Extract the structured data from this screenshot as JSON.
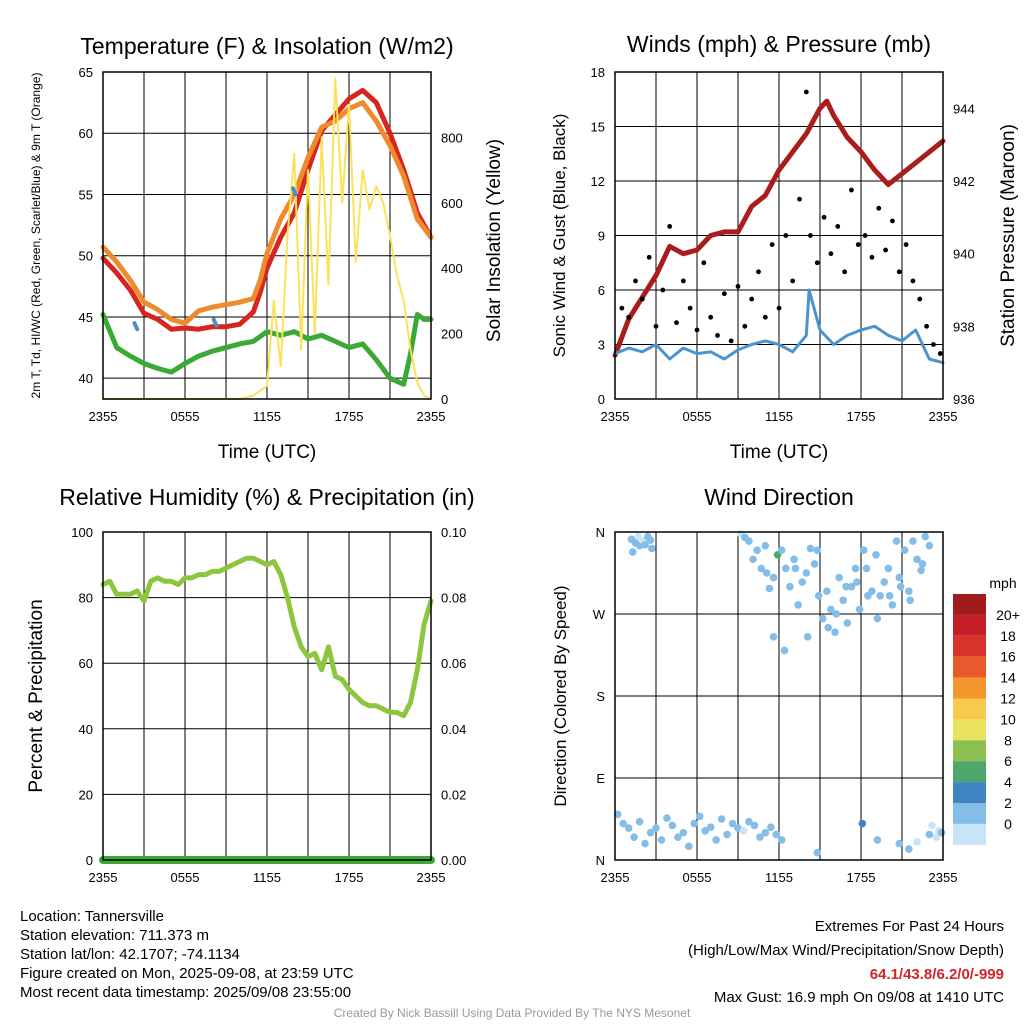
{
  "colors": {
    "t2m": "#d7261e",
    "t9m": "#f08a2e",
    "td": "#3aaa35",
    "hi_wc": "#4a90c8",
    "solar": "#fbe25a",
    "gust": "#000000",
    "wind": "#4a95d0",
    "pressure": "#aa1d1d",
    "rh": "#8cc63f",
    "precip": "#3aaa35"
  },
  "chart_data": [
    {
      "type": "line",
      "title": "Temperature (F) & Insolation (W/m2)",
      "xlabel": "Time (UTC)",
      "ylabel": "2m T, Td, HI/WC (Red, Green, Scarlet/Blue) & 9m T (Orange)",
      "ylabel_right": "Solar Insolation (Yellow)",
      "x_ticks": [
        "2355",
        "0555",
        "1155",
        "1755",
        "2355"
      ],
      "xlim": [
        0,
        24
      ],
      "ylim": [
        38.3,
        65
      ],
      "yticks": [
        40,
        45,
        50,
        55,
        60,
        65
      ],
      "ylim_right": [
        0,
        1000
      ],
      "yticks_right": [
        0,
        200,
        400,
        600,
        800
      ],
      "grid": true,
      "series": [
        {
          "key": "t2m",
          "x": [
            0,
            1,
            2,
            3,
            4,
            5,
            6,
            7,
            8,
            9,
            10,
            11,
            11.5,
            12,
            13,
            14,
            15,
            16,
            17,
            18,
            19,
            20,
            21,
            22,
            23,
            24
          ],
          "y": [
            49.8,
            48.6,
            47.2,
            45.3,
            44.8,
            44.0,
            44.1,
            44.0,
            44.2,
            44.2,
            44.4,
            45.4,
            47.0,
            49.0,
            51.5,
            53.5,
            57.0,
            60.2,
            61.5,
            62.8,
            63.5,
            62.5,
            60.0,
            57.0,
            53.5,
            51.5
          ]
        },
        {
          "key": "t9m",
          "x": [
            0,
            1,
            2,
            3,
            4,
            5,
            6,
            7,
            8,
            9,
            10,
            11,
            11.5,
            12,
            13,
            14,
            15,
            16,
            17,
            18,
            19,
            20,
            21,
            22,
            23,
            24
          ],
          "y": [
            50.7,
            49.5,
            48.0,
            46.2,
            45.6,
            44.8,
            44.5,
            45.5,
            45.8,
            46.0,
            46.2,
            46.5,
            48.0,
            50.2,
            53.0,
            55.0,
            58.0,
            60.5,
            61.0,
            62.0,
            62.5,
            61.0,
            59.0,
            56.5,
            53.0,
            51.5
          ]
        },
        {
          "key": "td",
          "x": [
            0,
            1,
            2,
            3,
            4,
            5,
            6,
            7,
            8,
            9,
            10,
            11,
            12,
            13,
            14,
            15,
            16,
            17,
            18,
            19,
            20,
            21,
            22,
            22.5,
            23,
            23.5,
            24
          ],
          "y": [
            45.2,
            42.5,
            41.8,
            41.2,
            40.8,
            40.5,
            41.2,
            41.8,
            42.2,
            42.5,
            42.8,
            43.0,
            43.8,
            43.5,
            43.8,
            43.2,
            43.5,
            43.0,
            42.5,
            42.8,
            41.5,
            40.0,
            39.5,
            42.0,
            45.2,
            44.8,
            44.8
          ]
        },
        {
          "key": "solar",
          "axis": "right",
          "x": [
            0,
            10,
            11,
            12,
            12.5,
            13,
            13.5,
            14,
            14.5,
            15,
            15.5,
            16,
            16.5,
            17,
            17.5,
            18,
            18.5,
            19,
            19.5,
            20,
            20.5,
            21,
            21.5,
            22,
            22.5,
            23,
            23.5,
            24
          ],
          "y": [
            0,
            0,
            10,
            40,
            300,
            100,
            500,
            750,
            150,
            700,
            200,
            800,
            350,
            980,
            600,
            900,
            420,
            700,
            580,
            650,
            600,
            500,
            380,
            300,
            150,
            50,
            10,
            0
          ]
        },
        {
          "key": "hi_wc",
          "x": [
            2.3,
            2.5,
            8.1,
            8.3,
            13.9,
            14.1
          ],
          "y": [
            44.5,
            44.0,
            44.8,
            44.3,
            55.5,
            55.0
          ]
        }
      ]
    },
    {
      "type": "line",
      "title": "Winds (mph) & Pressure (mb)",
      "xlabel": "Time (UTC)",
      "ylabel": "Sonic Wind & Gust (Blue, Black)",
      "ylabel_right": "Station Pressure (Maroon)",
      "x_ticks": [
        "2355",
        "0555",
        "1155",
        "1755",
        "2355"
      ],
      "xlim": [
        0,
        24
      ],
      "ylim": [
        0,
        18
      ],
      "yticks": [
        0,
        3,
        6,
        9,
        12,
        15,
        18
      ],
      "ylim_right": [
        936,
        945
      ],
      "yticks_right": [
        936,
        938,
        940,
        942,
        944
      ],
      "grid": true,
      "series": [
        {
          "key": "pressure",
          "axis": "right",
          "x": [
            0,
            1,
            2,
            3,
            4,
            5,
            6,
            7,
            8,
            9,
            10,
            11,
            12,
            13,
            14,
            15,
            15.5,
            16,
            17,
            18,
            19,
            20,
            21,
            22,
            23,
            24
          ],
          "y": [
            937.2,
            938.2,
            938.8,
            939.4,
            940.2,
            940.0,
            940.1,
            940.5,
            940.6,
            940.6,
            941.3,
            941.6,
            942.3,
            942.8,
            943.3,
            944.0,
            944.2,
            943.8,
            943.2,
            942.8,
            942.3,
            941.9,
            942.2,
            942.5,
            942.8,
            943.1
          ]
        },
        {
          "key": "wind",
          "x": [
            0,
            1,
            2,
            3,
            4,
            5,
            6,
            7,
            8,
            9,
            10,
            11,
            12,
            13,
            14,
            14.2,
            15,
            16,
            17,
            18,
            19,
            20,
            21,
            22,
            23,
            24
          ],
          "y": [
            2.5,
            2.8,
            2.6,
            3.0,
            2.2,
            2.8,
            2.5,
            2.6,
            2.2,
            2.7,
            3.0,
            3.2,
            3.0,
            2.6,
            3.5,
            6.0,
            3.8,
            3.0,
            3.5,
            3.8,
            4.0,
            3.5,
            3.2,
            3.8,
            2.2,
            2.0
          ]
        },
        {
          "key": "gust",
          "mode": "points",
          "x": [
            0.5,
            1,
            1.5,
            2,
            2.5,
            3,
            3.5,
            4,
            4.5,
            5,
            5.5,
            6,
            6.5,
            7,
            7.5,
            8,
            8.5,
            9,
            9.5,
            10,
            10.5,
            11,
            11.5,
            12,
            12.5,
            13,
            13.5,
            14,
            14.3,
            14.8,
            15.3,
            15.8,
            16.3,
            16.8,
            17.3,
            17.8,
            18.3,
            18.8,
            19.3,
            19.8,
            20.3,
            20.8,
            21.3,
            21.8,
            22.3,
            22.8,
            23.3,
            23.8
          ],
          "y": [
            5.0,
            4.5,
            6.5,
            5.5,
            7.8,
            4.0,
            6.0,
            9.5,
            4.2,
            6.5,
            5.0,
            3.8,
            7.5,
            4.5,
            3.5,
            5.8,
            3.2,
            6.2,
            4.0,
            5.5,
            7.0,
            4.5,
            8.5,
            5.0,
            9.0,
            6.5,
            11.0,
            16.9,
            9.0,
            7.5,
            10.0,
            8.0,
            9.5,
            7.0,
            11.5,
            8.5,
            9.0,
            7.8,
            10.5,
            8.2,
            9.8,
            7.0,
            8.5,
            6.5,
            5.5,
            4.0,
            3.0,
            2.5
          ]
        }
      ]
    },
    {
      "type": "line",
      "title": "Relative Humidity (%) & Precipitation (in)",
      "xlabel": "",
      "ylabel": "Percent & Precipitation",
      "x_ticks": [
        "2355",
        "0555",
        "1155",
        "1755",
        "2355"
      ],
      "xlim": [
        0,
        24
      ],
      "ylim": [
        0,
        100
      ],
      "yticks": [
        0,
        20,
        40,
        60,
        80,
        100
      ],
      "ylim_right": [
        0,
        0.1
      ],
      "yticks_right": [
        "0.00",
        "0.02",
        "0.04",
        "0.06",
        "0.08",
        "0.10"
      ],
      "grid": true,
      "series": [
        {
          "key": "rh",
          "x": [
            0,
            0.5,
            1,
            1.5,
            2,
            2.5,
            3,
            3.5,
            4,
            4.5,
            5,
            5.5,
            6,
            6.5,
            7,
            7.5,
            8,
            8.5,
            9,
            9.5,
            10,
            10.5,
            11,
            11.5,
            12,
            12.5,
            13,
            13.5,
            14,
            14.5,
            15,
            15.5,
            16,
            16.5,
            17,
            17.5,
            18,
            18.5,
            19,
            19.5,
            20,
            20.5,
            21,
            21.5,
            22,
            22.5,
            23,
            23.5,
            24
          ],
          "y": [
            84,
            85,
            81,
            81,
            81,
            82,
            79,
            85,
            86,
            85,
            85,
            84,
            86,
            86,
            87,
            87,
            88,
            88,
            89,
            90,
            91,
            92,
            92,
            91,
            90,
            91,
            87,
            80,
            71,
            65,
            62,
            63,
            58,
            65,
            56,
            55,
            52,
            50,
            48,
            47,
            47,
            46,
            45,
            45,
            44,
            48,
            58,
            72,
            79
          ]
        },
        {
          "key": "precip",
          "axis": "right",
          "x": [
            0,
            24
          ],
          "y": [
            0,
            0
          ]
        }
      ]
    },
    {
      "type": "scatter",
      "title": "Wind Direction",
      "ylabel": "Direction (Colored By Speed)",
      "x_ticks": [
        "2355",
        "0555",
        "1155",
        "1755",
        "2355"
      ],
      "xlim": [
        0,
        24
      ],
      "ylim": [
        0,
        360
      ],
      "y_labels": [
        "N",
        "E",
        "S",
        "W",
        "N"
      ],
      "y_label_values": [
        0,
        90,
        180,
        270,
        360
      ],
      "grid": true,
      "speed_bins": {
        "title": "mph",
        "labels": [
          "20+",
          "18",
          "16",
          "14",
          "12",
          "10",
          "8",
          "6",
          "4",
          "2",
          "0"
        ],
        "colors": [
          "#a11b1d",
          "#c41f26",
          "#d8342a",
          "#e85a2b",
          "#f4962d",
          "#f8c94c",
          "#e8e25f",
          "#8cc04e",
          "#4ea66a",
          "#3f85c2",
          "#83bde8",
          "#c8e5f8"
        ]
      },
      "points": {
        "x": [
          1.2,
          1.5,
          1.8,
          2.1,
          2.4,
          2.7,
          1.3,
          1.7,
          2.2,
          2.6,
          9.2,
          9.5,
          9.8,
          10.1,
          10.4,
          10.7,
          11.0,
          11.3,
          11.6,
          11.9,
          12.2,
          12.5,
          12.8,
          13.1,
          13.4,
          13.7,
          14.0,
          14.3,
          14.6,
          14.9,
          15.2,
          15.5,
          15.8,
          16.1,
          16.4,
          16.7,
          17.0,
          17.3,
          17.6,
          17.9,
          18.2,
          18.5,
          18.8,
          19.1,
          19.4,
          19.7,
          20.0,
          20.3,
          20.6,
          20.9,
          21.2,
          21.5,
          21.8,
          22.1,
          22.4,
          22.7,
          23.0,
          11.1,
          11.6,
          12.4,
          13.2,
          14.1,
          14.8,
          15.6,
          16.2,
          16.9,
          17.7,
          18.4,
          19.2,
          20.1,
          20.8,
          21.6,
          22.5,
          0.2,
          0.6,
          1.0,
          1.4,
          1.8,
          2.2,
          2.6,
          3.0,
          3.4,
          3.8,
          4.2,
          4.6,
          5.0,
          5.4,
          5.8,
          6.2,
          6.6,
          7.0,
          7.4,
          7.8,
          8.2,
          8.6,
          9.0,
          9.4,
          9.8,
          10.2,
          10.6,
          11.0,
          11.4,
          11.8,
          12.2,
          14.8,
          18.1,
          19.2,
          20.8,
          21.5,
          22.1,
          23.0,
          23.2,
          23.5,
          23.7,
          23.9
        ],
        "y": [
          352,
          348,
          345,
          350,
          355,
          342,
          338,
          355,
          346,
          351,
          358,
          354,
          350,
          330,
          340,
          320,
          345,
          298,
          310,
          335,
          340,
          320,
          300,
          330,
          280,
          305,
          315,
          342,
          325,
          290,
          265,
          295,
          275,
          250,
          310,
          285,
          260,
          300,
          320,
          275,
          340,
          290,
          295,
          335,
          290,
          305,
          320,
          280,
          350,
          300,
          340,
          295,
          350,
          330,
          318,
          355,
          345,
          315,
          245,
          230,
          320,
          245,
          340,
          255,
          270,
          300,
          305,
          320,
          265,
          290,
          310,
          285,
          325,
          50,
          40,
          35,
          25,
          42,
          18,
          30,
          35,
          22,
          46,
          38,
          25,
          30,
          15,
          40,
          48,
          32,
          36,
          22,
          45,
          28,
          40,
          35,
          32,
          42,
          38,
          25,
          30,
          36,
          28,
          22,
          8,
          40,
          22,
          18,
          12,
          20,
          28,
          38,
          25,
          32,
          30
        ],
        "speed": [
          2,
          2,
          2,
          1,
          2,
          2,
          2,
          1,
          2,
          2,
          1,
          2,
          2,
          2,
          3,
          2,
          3,
          2,
          2,
          6,
          3,
          2,
          2,
          3,
          3,
          2,
          2,
          2,
          3,
          2,
          2,
          3,
          2,
          2,
          3,
          3,
          2,
          3,
          3,
          2,
          3,
          2,
          2,
          3,
          2,
          3,
          3,
          2,
          2,
          2,
          3,
          2,
          2,
          3,
          2,
          2,
          3,
          2,
          2,
          3,
          2,
          3,
          2,
          3,
          2,
          2,
          3,
          2,
          3,
          3,
          2,
          3,
          2,
          2,
          2,
          3,
          2,
          2,
          2,
          3,
          3,
          2,
          2,
          2,
          2,
          2,
          2,
          2,
          3,
          2,
          2,
          2,
          2,
          3,
          2,
          2,
          1,
          2,
          2,
          2,
          2,
          2,
          2,
          3,
          3,
          4,
          3,
          3,
          2,
          1,
          2,
          1,
          1,
          1,
          2
        ]
      }
    }
  ],
  "footer": {
    "location": "Location: Tannersville",
    "elevation": "Station elevation: 711.373 m",
    "latlon": "Station lat/lon: 42.1707; -74.1134",
    "created": "Figure created on Mon, 2025-09-08, at 23:59 UTC",
    "recent": "Most recent data timestamp: 2025/09/08 23:55:00",
    "extremes_title": "Extremes For Past 24 Hours",
    "extremes_subtitle": "(High/Low/Max Wind/Precipitation/Snow Depth)",
    "extremes_values": "64.1/43.8/6.2/0/-999",
    "max_gust": "Max Gust: 16.9 mph On 09/08 at 1410 UTC",
    "credit": "Created By Nick Bassill Using Data Provided By The NYS Mesonet"
  }
}
